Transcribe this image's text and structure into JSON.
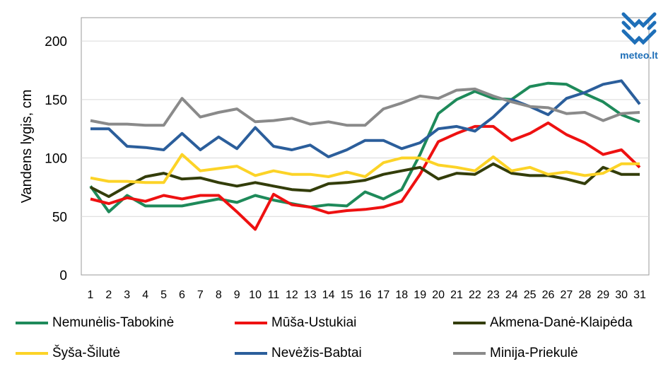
{
  "logo": {
    "text": "meteo.lt",
    "color": "#1e6fb8"
  },
  "chart_data": {
    "type": "line",
    "title": "",
    "ylabel": "Vandens lygis, cm",
    "xlabel": "",
    "ylim": [
      0,
      220
    ],
    "yticks": [
      0,
      50,
      100,
      150,
      200
    ],
    "grid": "horizontal",
    "legend_position": "bottom",
    "x": [
      1,
      2,
      3,
      4,
      5,
      6,
      7,
      8,
      9,
      10,
      11,
      12,
      13,
      14,
      15,
      16,
      17,
      18,
      19,
      20,
      21,
      22,
      23,
      24,
      25,
      26,
      27,
      28,
      29,
      30,
      31
    ],
    "series": [
      {
        "name": "Nemunėlis-Tabokinė",
        "color": "#1e8a5a",
        "values": [
          76,
          54,
          68,
          59,
          59,
          59,
          62,
          65,
          62,
          68,
          64,
          61,
          58,
          60,
          59,
          71,
          65,
          73,
          103,
          138,
          150,
          157,
          151,
          150,
          161,
          164,
          163,
          155,
          148,
          137,
          131
        ]
      },
      {
        "name": "Mūša-Ustukiai",
        "color": "#ee1111",
        "values": [
          65,
          61,
          66,
          63,
          68,
          65,
          68,
          68,
          54,
          39,
          69,
          60,
          58,
          53,
          55,
          56,
          58,
          63,
          86,
          114,
          121,
          127,
          127,
          115,
          121,
          130,
          120,
          113,
          103,
          107,
          92
        ]
      },
      {
        "name": "Akmena-Danė-Klaipėda",
        "color": "#333d0a",
        "values": [
          75,
          67,
          76,
          84,
          87,
          82,
          83,
          79,
          76,
          79,
          76,
          73,
          72,
          78,
          79,
          81,
          86,
          89,
          92,
          82,
          87,
          86,
          95,
          87,
          85,
          85,
          82,
          78,
          92,
          86,
          86
        ]
      },
      {
        "name": "Šyša-Šilutė",
        "color": "#fcd327",
        "values": [
          83,
          80,
          80,
          79,
          79,
          103,
          89,
          91,
          93,
          85,
          89,
          86,
          86,
          84,
          88,
          84,
          96,
          100,
          100,
          94,
          92,
          89,
          101,
          89,
          92,
          86,
          88,
          85,
          87,
          95,
          95
        ]
      },
      {
        "name": "Nevėžis-Babtai",
        "color": "#2b5e9b",
        "values": [
          125,
          125,
          110,
          109,
          107,
          121,
          107,
          118,
          108,
          126,
          110,
          107,
          111,
          101,
          107,
          115,
          115,
          108,
          113,
          125,
          127,
          123,
          135,
          150,
          144,
          137,
          151,
          156,
          163,
          166,
          146
        ]
      },
      {
        "name": "Minija-Priekulė",
        "color": "#8a8a8a",
        "values": [
          132,
          129,
          129,
          128,
          128,
          151,
          135,
          139,
          142,
          131,
          132,
          134,
          129,
          131,
          128,
          128,
          142,
          147,
          153,
          151,
          158,
          159,
          153,
          148,
          144,
          143,
          138,
          139,
          132,
          138,
          139
        ]
      }
    ]
  }
}
